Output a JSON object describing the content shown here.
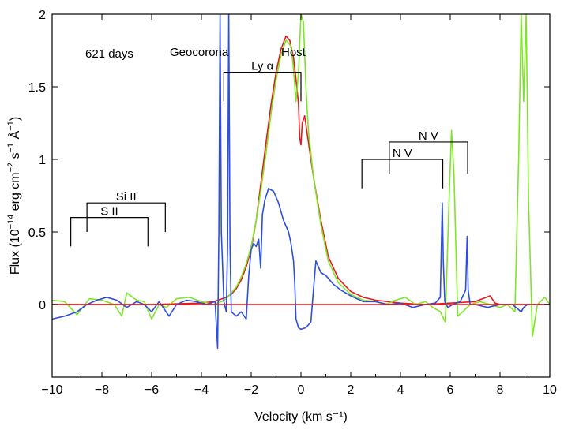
{
  "chart_data": {
    "type": "line",
    "title": "621 days",
    "xlabel": "Velocity (km s⁻¹)",
    "ylabel_parts": {
      "base": "Flux (10",
      "exp": "−14",
      "units1": " erg cm",
      "exp2": "−2",
      "units2": " s",
      "exp3": "−1",
      "units3": " Å",
      "exp4": "−1",
      "close": ")"
    },
    "xlim": [
      -10,
      10
    ],
    "ylim": [
      -0.5,
      2.0
    ],
    "xticks": [
      -10,
      -8,
      -6,
      -4,
      -2,
      0,
      2,
      4,
      6,
      8,
      10
    ],
    "xtick_labels": [
      "−10",
      "−8",
      "−6",
      "−4",
      "−2",
      "0",
      "2",
      "4",
      "6",
      "8",
      "10"
    ],
    "yticks": [
      0,
      0.5,
      1,
      1.5,
      2
    ],
    "ytick_labels": [
      "0",
      "0.5",
      "1",
      "1.5",
      "2"
    ],
    "annotations": {
      "epoch": "621 days",
      "geocorona": "Geocorona",
      "host": "Host",
      "lya": "Ly α",
      "nv_1": "N V",
      "nv_2": "N V",
      "sii": "Si II",
      "s2": "S II"
    },
    "line_ids": [
      {
        "label": "Ly α",
        "x1": -3.1,
        "x2": 0.0,
        "bar_y": 1.6,
        "drop_y": 1.4,
        "x_extra": 0.0
      },
      {
        "label": "N V",
        "x1": 3.55,
        "x2": 6.7,
        "bar_y": 1.12,
        "drop_y": 0.9
      },
      {
        "label": "N V",
        "x1": 2.45,
        "x2": 5.7,
        "bar_y": 1.0,
        "drop_y": 0.8
      },
      {
        "label": "Si II",
        "x1": -8.6,
        "x2": -5.45,
        "bar_y": 0.7,
        "drop_y": 0.5
      },
      {
        "label": "S II",
        "x1": -9.25,
        "x2": -6.15,
        "bar_y": 0.6,
        "drop_y": 0.4
      }
    ],
    "series": [
      {
        "name": "red",
        "color": "#e41a1c",
        "x": [
          -10,
          -6,
          -4,
          -3.5,
          -3,
          -2.8,
          -2.6,
          -2.4,
          -2.2,
          -2.0,
          -1.8,
          -1.6,
          -1.4,
          -1.2,
          -1.0,
          -0.8,
          -0.6,
          -0.45,
          -0.3,
          -0.2,
          -0.1,
          -0.05,
          0.0,
          0.05,
          0.15,
          0.3,
          0.5,
          0.8,
          1.1,
          1.5,
          2.0,
          2.5,
          3.0,
          4.0,
          5.0,
          6.0,
          7.0,
          7.6,
          7.8,
          8.0,
          9.0,
          10
        ],
        "y": [
          0.0,
          0.0,
          0.01,
          0.02,
          0.05,
          0.07,
          0.11,
          0.17,
          0.26,
          0.38,
          0.58,
          0.85,
          1.12,
          1.38,
          1.6,
          1.76,
          1.85,
          1.82,
          1.7,
          1.55,
          1.38,
          1.15,
          1.1,
          1.25,
          1.3,
          1.12,
          0.88,
          0.58,
          0.33,
          0.18,
          0.09,
          0.05,
          0.03,
          0.01,
          0.0,
          0.01,
          0.02,
          0.06,
          0.01,
          0.0,
          0.0,
          0.0
        ]
      },
      {
        "name": "green",
        "color": "#7fe52a",
        "x": [
          -10,
          -9.5,
          -9.0,
          -8.5,
          -8.0,
          -7.5,
          -7.2,
          -7.0,
          -6.6,
          -6.3,
          -6.0,
          -5.7,
          -5.4,
          -5.0,
          -4.5,
          -4.0,
          -3.5,
          -3.2,
          -3.0,
          -2.8,
          -2.6,
          -2.4,
          -2.2,
          -2.0,
          -1.8,
          -1.6,
          -1.4,
          -1.2,
          -1.0,
          -0.8,
          -0.6,
          -0.4,
          -0.3,
          -0.2,
          -0.1,
          0.0,
          0.1,
          0.2,
          0.3,
          0.5,
          0.8,
          1.1,
          1.5,
          2.0,
          2.5,
          3.0,
          3.4,
          3.8,
          4.2,
          4.6,
          5.0,
          5.3,
          5.6,
          5.8,
          5.95,
          6.05,
          6.15,
          6.3,
          6.5,
          6.8,
          7.2,
          7.6,
          8.0,
          8.3,
          8.6,
          8.75,
          8.85,
          8.95,
          9.05,
          9.15,
          9.3,
          9.5,
          9.8,
          10
        ],
        "y": [
          0.03,
          0.02,
          -0.07,
          0.04,
          0.03,
          0.0,
          -0.08,
          0.08,
          0.03,
          0.02,
          -0.1,
          0.0,
          -0.02,
          0.04,
          0.05,
          0.02,
          0.0,
          0.02,
          0.04,
          0.08,
          0.12,
          0.19,
          0.28,
          0.4,
          0.58,
          0.8,
          1.05,
          1.32,
          1.55,
          1.72,
          1.82,
          1.78,
          1.62,
          1.4,
          1.6,
          2.0,
          1.95,
          1.5,
          1.2,
          0.88,
          0.55,
          0.3,
          0.15,
          0.07,
          0.03,
          0.02,
          0.0,
          0.03,
          0.05,
          0.0,
          0.02,
          -0.02,
          -0.05,
          -0.12,
          0.7,
          1.2,
          0.9,
          -0.08,
          -0.05,
          0.0,
          0.02,
          0.0,
          -0.02,
          0.0,
          -0.05,
          1.0,
          2.0,
          1.4,
          2.0,
          0.7,
          -0.22,
          0.0,
          0.05,
          0.0
        ]
      },
      {
        "name": "blue",
        "color": "#2d4fe0",
        "x": [
          -10,
          -9.5,
          -9.0,
          -8.6,
          -8.2,
          -7.8,
          -7.4,
          -7.0,
          -6.6,
          -6.3,
          -6.0,
          -5.7,
          -5.3,
          -5.0,
          -4.6,
          -4.2,
          -3.8,
          -3.45,
          -3.35,
          -3.3,
          -3.25,
          -3.2,
          -3.1,
          -3.0,
          -2.95,
          -2.9,
          -2.85,
          -2.8,
          -2.6,
          -2.4,
          -2.2,
          -2.1,
          -2.0,
          -1.9,
          -1.8,
          -1.7,
          -1.62,
          -1.55,
          -1.45,
          -1.3,
          -1.1,
          -0.9,
          -0.7,
          -0.5,
          -0.4,
          -0.3,
          -0.25,
          -0.2,
          -0.1,
          0.0,
          0.2,
          0.4,
          0.5,
          0.6,
          0.8,
          1.0,
          1.3,
          1.6,
          2.0,
          2.5,
          3.0,
          3.5,
          4.0,
          4.5,
          5.0,
          5.4,
          5.6,
          5.68,
          5.72,
          5.78,
          5.9,
          6.1,
          6.4,
          6.62,
          6.68,
          6.72,
          6.8,
          7.0,
          7.5,
          8.0,
          8.5,
          8.85,
          8.95,
          9.1,
          9.3,
          9.6,
          10
        ],
        "y": [
          -0.1,
          -0.08,
          -0.05,
          0.0,
          0.03,
          0.05,
          0.03,
          -0.02,
          0.02,
          0.0,
          -0.05,
          0.02,
          -0.08,
          0.0,
          0.03,
          0.02,
          0.0,
          0.02,
          -0.3,
          0.5,
          2.0,
          0.5,
          0.02,
          -0.05,
          0.4,
          2.0,
          0.4,
          -0.05,
          -0.08,
          -0.05,
          -0.1,
          0.2,
          0.38,
          0.42,
          0.4,
          0.45,
          0.25,
          0.62,
          0.72,
          0.8,
          0.78,
          0.7,
          0.58,
          0.5,
          0.42,
          0.3,
          0.15,
          -0.1,
          -0.16,
          -0.17,
          -0.16,
          -0.12,
          0.1,
          0.3,
          0.22,
          0.2,
          0.14,
          0.1,
          0.06,
          0.02,
          0.02,
          0.0,
          0.01,
          -0.02,
          0.0,
          0.01,
          0.05,
          0.7,
          0.3,
          0.02,
          -0.02,
          0.0,
          0.02,
          0.1,
          0.47,
          0.1,
          0.0,
          0.0,
          -0.02,
          0.0,
          0.0,
          -0.05,
          -0.02,
          0.0,
          0.0,
          0.0,
          0.0
        ]
      }
    ]
  }
}
